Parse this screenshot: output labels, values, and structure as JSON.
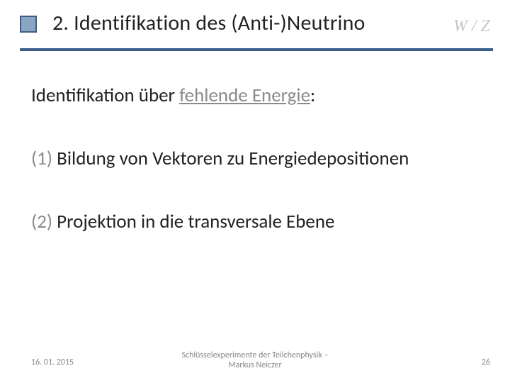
{
  "header": {
    "title": "2. Identifikation des (Anti-)Neutrino",
    "corner_label": "W / Z",
    "bullet": {
      "border_color": "#3b5f8a",
      "fill_color": "#8aa5c4"
    },
    "rule_color": "#3b5f8a"
  },
  "body": {
    "intro_prefix": "Identifikation über ",
    "intro_underlined": "fehlende Energie",
    "intro_suffix": ":",
    "steps": [
      {
        "num": "(1)",
        "text": " Bildung von Vektoren zu Energiedepositionen"
      },
      {
        "num": "(2)",
        "text": " Projektion in die transversale Ebene"
      }
    ]
  },
  "footer": {
    "date": "16. 01. 2015",
    "center_line1": "Schlüsselexperimente der Teilchenphysik –",
    "center_line2": "Markus Neiczer",
    "page": "26"
  },
  "colors": {
    "muted_text": "#8a8a8a",
    "wz_ghost": "rgba(80,80,80,0.32)",
    "footer_text": "#888888",
    "body_text": "#222222",
    "background": "#ffffff"
  }
}
